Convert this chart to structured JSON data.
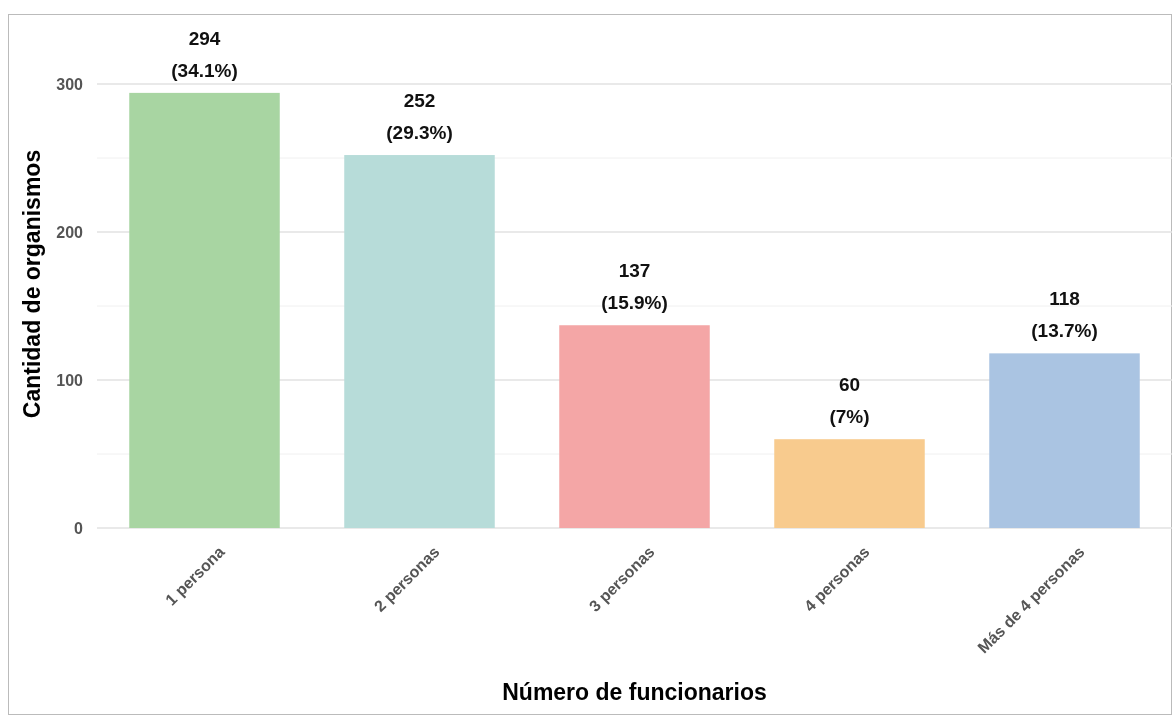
{
  "chart_data": {
    "type": "bar",
    "xlabel": "Número de funcionarios",
    "ylabel": "Cantidad de organismos",
    "categories": [
      "1 persona",
      "2 personas",
      "3 personas",
      "4 personas",
      "Más de 4 personas"
    ],
    "values": [
      294,
      252,
      137,
      60,
      118
    ],
    "colors": [
      "#a8d5a2",
      "#b7dcd9",
      "#f4a6a6",
      "#f8cb8e",
      "#aac4e2"
    ],
    "value_labels": [
      "294\n(34.1%)",
      "252\n(29.3%)",
      "137\n(15.9%)",
      "60\n(7%)",
      "118\n(13.7%)"
    ],
    "ylim": [
      0,
      300
    ],
    "yticks": [
      0,
      {
        "value": 50,
        "label": null
      },
      100,
      {
        "value": 150,
        "label": null
      },
      200,
      {
        "value": 250,
        "label": null
      },
      300
    ],
    "grid": true
  }
}
